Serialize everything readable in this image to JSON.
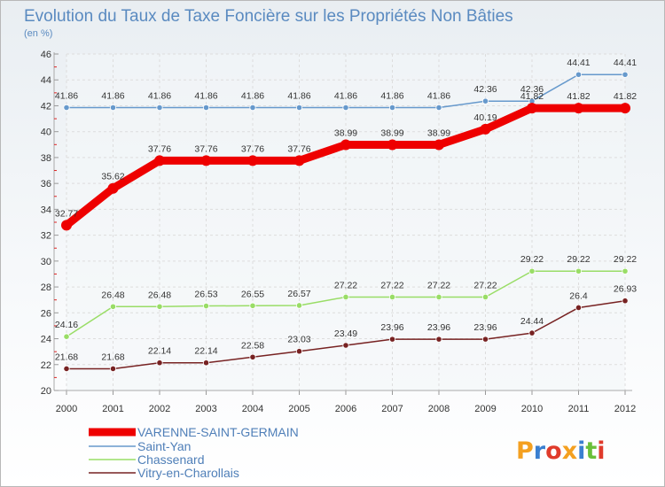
{
  "chart_data": {
    "type": "line",
    "title": "Evolution du Taux de Taxe Foncière sur les Propriétés Non Bâties",
    "subtitle": "(en %)",
    "xlabel": "",
    "ylabel": "",
    "x": [
      "2000",
      "2001",
      "2002",
      "2003",
      "2004",
      "2005",
      "2006",
      "2007",
      "2008",
      "2009",
      "2010",
      "2011",
      "2012"
    ],
    "ylim": [
      20,
      46
    ],
    "yticks": [
      20,
      22,
      24,
      26,
      28,
      30,
      32,
      34,
      36,
      38,
      40,
      42,
      44,
      46
    ],
    "grid": true,
    "legend_position": "bottom-left",
    "series": [
      {
        "name": "VARENNE-SAINT-GERMAIN",
        "color": "#ee0000",
        "values": [
          32.77,
          35.62,
          37.76,
          37.76,
          37.76,
          37.76,
          38.99,
          38.99,
          38.99,
          40.19,
          41.82,
          41.82,
          41.82
        ],
        "labels": [
          "32.77",
          "35.62",
          "37.76",
          "37.76",
          "37.76",
          "37.76",
          "38.99",
          "38.99",
          "38.99",
          "40.19",
          "41.82",
          "41.82",
          "41.82"
        ]
      },
      {
        "name": "Saint-Yan",
        "color": "#6699cc",
        "values": [
          41.86,
          41.86,
          41.86,
          41.86,
          41.86,
          41.86,
          41.86,
          41.86,
          41.86,
          42.36,
          42.36,
          44.41,
          44.41
        ],
        "labels": [
          "41.86",
          "41.86",
          "41.86",
          "41.86",
          "41.86",
          "41.86",
          "41.86",
          "41.86",
          "41.86",
          "42.36",
          "42.36",
          "44.41",
          "44.41"
        ]
      },
      {
        "name": "Chassenard",
        "color": "#99dd66",
        "values": [
          24.16,
          26.48,
          26.48,
          26.53,
          26.55,
          26.57,
          27.22,
          27.22,
          27.22,
          27.22,
          29.22,
          29.22,
          29.22
        ],
        "labels": [
          "24.16",
          "26.48",
          "26.48",
          "26.53",
          "26.55",
          "26.57",
          "27.22",
          "27.22",
          "27.22",
          "27.22",
          "29.22",
          "29.22",
          "29.22"
        ]
      },
      {
        "name": "Vitry-en-Charollais",
        "color": "#772222",
        "values": [
          21.68,
          21.68,
          22.14,
          22.14,
          22.58,
          23.03,
          23.49,
          23.96,
          23.96,
          23.96,
          24.44,
          26.4,
          26.93
        ],
        "labels": [
          "21.68",
          "21.68",
          "22.14",
          "22.14",
          "22.58",
          "23.03",
          "23.49",
          "23.96",
          "23.96",
          "23.96",
          "24.44",
          "26.4",
          "26.93"
        ]
      }
    ]
  },
  "branding": {
    "logo_text": "Proxiti",
    "logo_colors": [
      "#f4a020",
      "#3a7fd0",
      "#e03b2b",
      "#f4a020",
      "#3a7fd0",
      "#6abf3a",
      "#e03b2b"
    ]
  }
}
